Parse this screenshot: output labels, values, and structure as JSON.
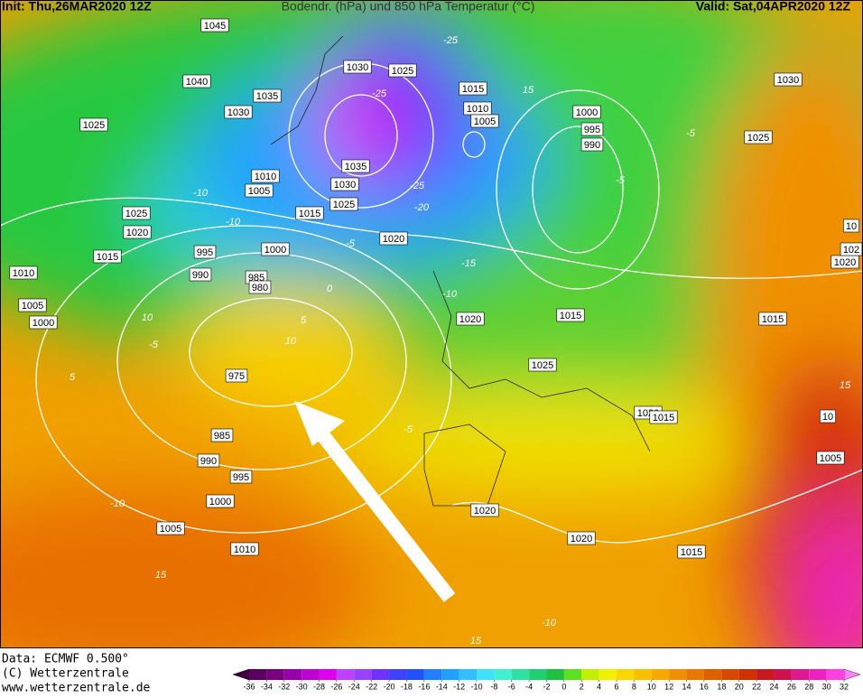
{
  "header": {
    "init": "Init: Thu,26MAR2020 12Z",
    "title": "Bodendr. (hPa) und 850 hPa Temperatur (°C)",
    "valid": "Valid: Sat,04APR2020 12Z"
  },
  "isobar_labels": [
    "1045",
    "1040",
    "1025",
    "1035",
    "1030",
    "1030",
    "1025",
    "1015",
    "1010",
    "1005",
    "1000",
    "995",
    "990",
    "1030",
    "1025",
    "1035",
    "1030",
    "1025",
    "1015",
    "1010",
    "1005",
    "1025",
    "1020",
    "1015",
    "1020",
    "1000",
    "995",
    "990",
    "985",
    "980",
    "1010",
    "1005",
    "1000",
    "975",
    "985",
    "990",
    "995",
    "1000",
    "1005",
    "1010",
    "1020",
    "1015",
    "1025",
    "1015",
    "1020",
    "1015",
    "1020",
    "1020",
    "1015",
    "1005",
    "1020",
    "102",
    "10",
    "10"
  ],
  "temperature_labels": [
    "-25",
    "15",
    "-25",
    "-25",
    "-20",
    "-10",
    "-10",
    "-5",
    "-10",
    "-5",
    "-5",
    "15",
    "-10",
    "15",
    "15",
    "-10",
    "10",
    "5",
    "-5",
    "0",
    "-15",
    "10",
    "-5",
    "5"
  ],
  "footer": {
    "data": "Data: ECMWF  0.500°",
    "copyright": "(C) Wetterzentrale",
    "url": "www.wetterzentrale.de"
  },
  "colorbar": {
    "ticks": [
      -36,
      -34,
      -32,
      -30,
      -28,
      -26,
      -24,
      -22,
      -20,
      -18,
      -16,
      -14,
      -12,
      -10,
      -8,
      -6,
      -4,
      -2,
      0,
      2,
      4,
      6,
      8,
      10,
      12,
      14,
      16,
      18,
      20,
      22,
      24,
      26,
      28,
      30,
      32
    ],
    "colors": [
      "#5a0060",
      "#7a0080",
      "#9a00a8",
      "#c000d0",
      "#e000f0",
      "#c040ff",
      "#9a40ff",
      "#7030ff",
      "#4040ff",
      "#2050ff",
      "#2080ff",
      "#20a0ff",
      "#30c0ff",
      "#40e0ff",
      "#40f0d0",
      "#30e0a0",
      "#20d070",
      "#20c040",
      "#60e020",
      "#c0f000",
      "#f0f000",
      "#f8d800",
      "#f8c000",
      "#f8a800",
      "#f09000",
      "#e87800",
      "#e06000",
      "#d84800",
      "#d03000",
      "#c81820",
      "#d01050",
      "#e01890",
      "#f020c0",
      "#ff40e0"
    ],
    "under_color": "#400040",
    "over_color": "#ff80ff"
  }
}
